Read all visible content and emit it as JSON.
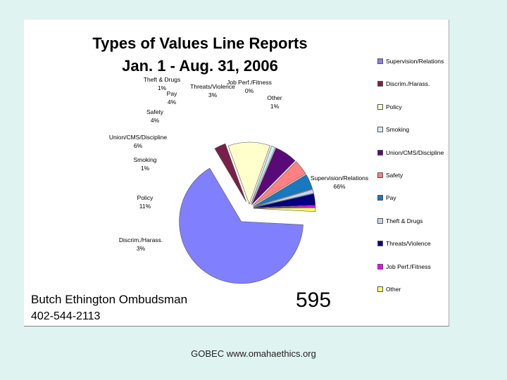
{
  "title_line1": "Types of Values Line Reports",
  "title_line2": "Jan. 1 - Aug. 31, 2006",
  "footer_name": "Butch Ethington  Ombudsman",
  "footer_phone": "402-544-2113",
  "total_count": "595",
  "caption": "GOBEC www.omahaethics.org",
  "chart_data": {
    "type": "pie",
    "title": "Types of Values Line Reports",
    "subtitle": "Jan. 1 - Aug. 31, 2006",
    "legend_position": "right",
    "slices": [
      {
        "label": "Supervision/Relations",
        "value": 66,
        "display": "66%",
        "color": "#8080ff"
      },
      {
        "label": "Discrim./Harass.",
        "value": 3,
        "display": "3%",
        "color": "#7a2048"
      },
      {
        "label": "Policy",
        "value": 11,
        "display": "11%",
        "color": "#ffffcc"
      },
      {
        "label": "Smoking",
        "value": 1,
        "display": "1%",
        "color": "#cfeef6"
      },
      {
        "label": "Union/CMS/Discipline",
        "value": 6,
        "display": "6%",
        "color": "#5a0a78"
      },
      {
        "label": "Safety",
        "value": 4,
        "display": "4%",
        "color": "#ff8080"
      },
      {
        "label": "Pay",
        "value": 4,
        "display": "4%",
        "color": "#1878c0"
      },
      {
        "label": "Theft & Drugs",
        "value": 1,
        "display": "1%",
        "color": "#c8d4f2"
      },
      {
        "label": "Threats/Violence",
        "value": 3,
        "display": "3%",
        "color": "#000080"
      },
      {
        "label": "Job Perf./Fitness",
        "value": 0.5,
        "display": "0%",
        "color": "#ff00ff"
      },
      {
        "label": "Other",
        "value": 1,
        "display": "1%",
        "color": "#ffff66"
      }
    ]
  }
}
